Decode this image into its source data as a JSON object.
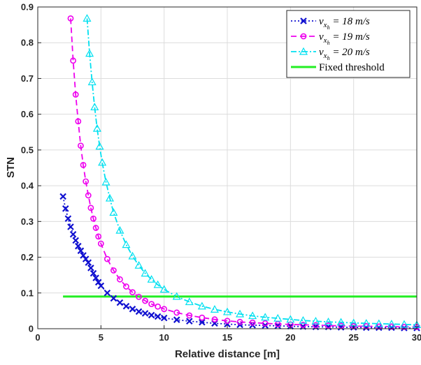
{
  "chart_data": {
    "type": "line",
    "xlabel": "Relative distance [m]",
    "ylabel": "STN",
    "xlim": [
      0,
      30
    ],
    "ylim": [
      0,
      0.9
    ],
    "xticks": [
      0,
      5,
      10,
      15,
      20,
      25,
      30
    ],
    "yticks": [
      0,
      0.1,
      0.2,
      0.3,
      0.4,
      0.5,
      0.6,
      0.7,
      0.8,
      0.9
    ],
    "grid": true,
    "legend_position": "top-right",
    "series": [
      {
        "name": "v_{x_h} = 18 m/s",
        "legend_label": {
          "prefix": "v",
          "sub": "x",
          "subsub": "h",
          "rest": " = 18 m/s"
        },
        "color": "#1010d0",
        "marker": "x",
        "line_style": "dotted",
        "x": [
          2,
          2.2,
          2.4,
          2.6,
          2.8,
          3,
          3.2,
          3.4,
          3.6,
          3.8,
          4,
          4.2,
          4.4,
          4.6,
          4.8,
          5,
          5.5,
          6,
          6.5,
          7,
          7.5,
          8,
          8.5,
          9,
          9.5,
          10,
          11,
          12,
          13,
          14,
          15,
          16,
          17,
          18,
          19,
          20,
          21,
          22,
          23,
          24,
          25,
          26,
          27,
          28,
          29,
          30
        ],
        "y": [
          0.37,
          0.336,
          0.308,
          0.285,
          0.264,
          0.247,
          0.231,
          0.218,
          0.205,
          0.195,
          0.185,
          0.17,
          0.155,
          0.142,
          0.13,
          0.12,
          0.1,
          0.085,
          0.073,
          0.063,
          0.055,
          0.048,
          0.043,
          0.038,
          0.034,
          0.03,
          0.025,
          0.021,
          0.018,
          0.015,
          0.013,
          0.011,
          0.01,
          0.009,
          0.008,
          0.007,
          0.006,
          0.005,
          0.005,
          0.004,
          0.004,
          0.003,
          0.003,
          0.003,
          0.002,
          0.002
        ]
      },
      {
        "name": "v_{x_h} = 19 m/s",
        "legend_label": {
          "prefix": "v",
          "sub": "x",
          "subsub": "h",
          "rest": " = 19 m/s"
        },
        "color": "#ee00ee",
        "marker": "o",
        "line_style": "dashed",
        "x": [
          2.6,
          2.8,
          3,
          3.2,
          3.4,
          3.6,
          3.8,
          4,
          4.2,
          4.4,
          4.6,
          4.8,
          5,
          5.5,
          6,
          6.5,
          7,
          7.5,
          8,
          8.5,
          9,
          9.5,
          10,
          11,
          12,
          13,
          14,
          15,
          16,
          17,
          18,
          19,
          20,
          21,
          22,
          23,
          24,
          25,
          26,
          27,
          28,
          29,
          30
        ],
        "y": [
          0.868,
          0.75,
          0.655,
          0.58,
          0.512,
          0.458,
          0.412,
          0.373,
          0.338,
          0.308,
          0.282,
          0.258,
          0.238,
          0.195,
          0.163,
          0.138,
          0.118,
          0.102,
          0.089,
          0.078,
          0.069,
          0.062,
          0.055,
          0.045,
          0.037,
          0.031,
          0.026,
          0.022,
          0.019,
          0.017,
          0.015,
          0.013,
          0.012,
          0.011,
          0.01,
          0.009,
          0.008,
          0.007,
          0.007,
          0.006,
          0.006,
          0.005,
          0.005
        ]
      },
      {
        "name": "v_{x_h} = 20 m/s",
        "legend_label": {
          "prefix": "v",
          "sub": "x",
          "subsub": "h",
          "rest": " = 20 m/s"
        },
        "color": "#00e0f0",
        "marker": "triangle",
        "line_style": "dash-dot",
        "x": [
          3.9,
          4.1,
          4.3,
          4.5,
          4.7,
          4.9,
          5.1,
          5.4,
          5.7,
          6,
          6.5,
          7,
          7.5,
          8,
          8.5,
          9,
          9.5,
          10,
          11,
          12,
          13,
          14,
          15,
          16,
          17,
          18,
          19,
          20,
          21,
          22,
          23,
          24,
          25,
          26,
          27,
          28,
          29,
          30
        ],
        "y": [
          0.868,
          0.77,
          0.69,
          0.62,
          0.56,
          0.51,
          0.465,
          0.41,
          0.365,
          0.325,
          0.275,
          0.235,
          0.203,
          0.177,
          0.155,
          0.138,
          0.123,
          0.11,
          0.09,
          0.075,
          0.063,
          0.054,
          0.047,
          0.041,
          0.036,
          0.032,
          0.029,
          0.026,
          0.023,
          0.021,
          0.019,
          0.018,
          0.016,
          0.015,
          0.014,
          0.013,
          0.012,
          0.011
        ]
      },
      {
        "name": "Fixed threshold",
        "legend_label": {
          "text": "Fixed threshold"
        },
        "color": "#22ee22",
        "marker": "none",
        "line_style": "solid",
        "x": [
          2,
          30
        ],
        "y": [
          0.09,
          0.09
        ]
      }
    ]
  }
}
